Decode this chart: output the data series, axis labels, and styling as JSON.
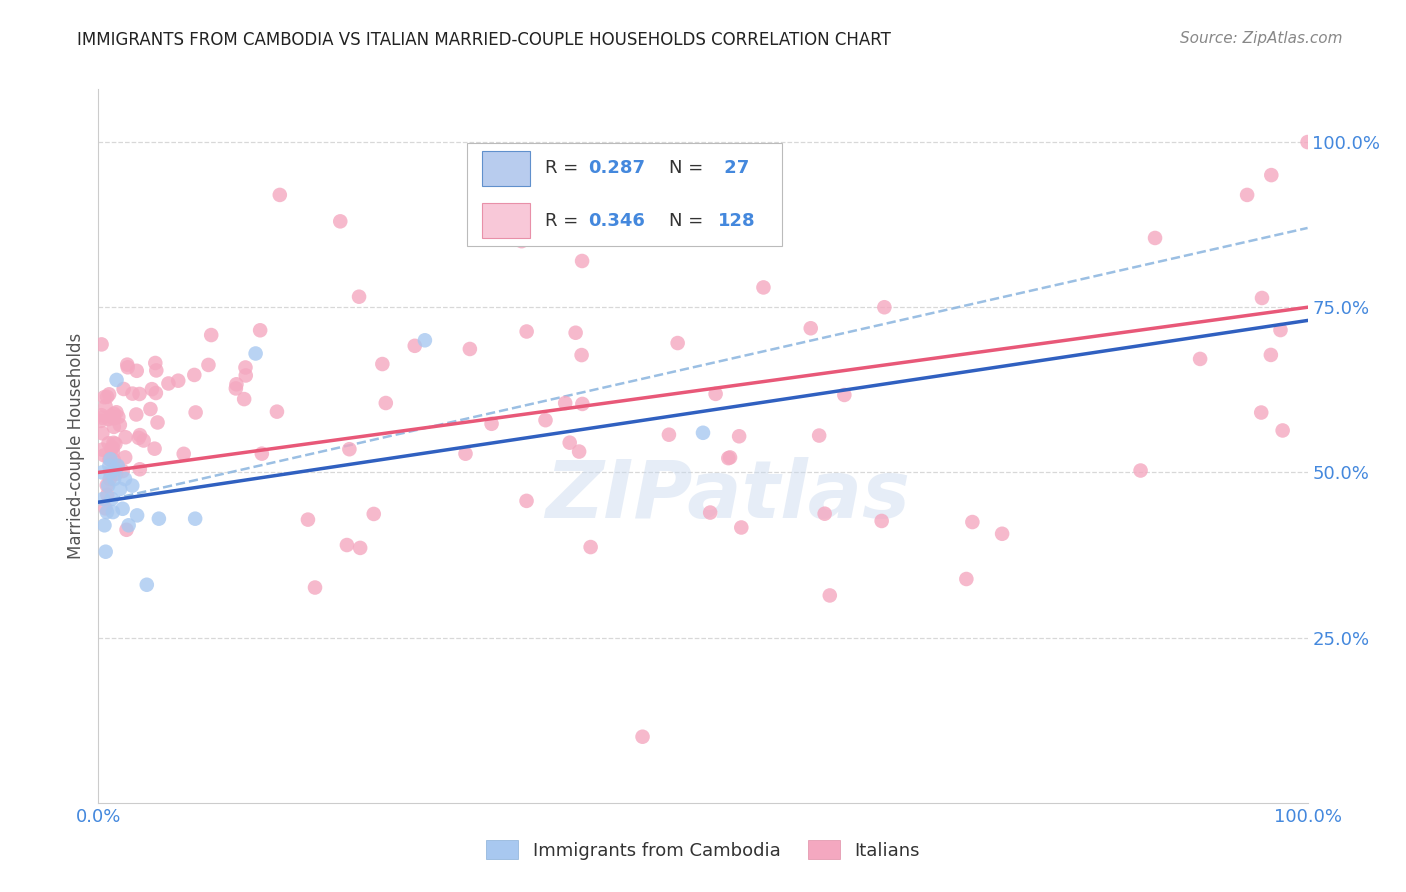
{
  "title": "IMMIGRANTS FROM CAMBODIA VS ITALIAN MARRIED-COUPLE HOUSEHOLDS CORRELATION CHART",
  "source": "Source: ZipAtlas.com",
  "ylabel": "Married-couple Households",
  "watermark": "ZIPatlas",
  "cambodia_color": "#a8c8f0",
  "italian_color": "#f4a8c0",
  "trendline_cambodia_color": "#3060c0",
  "trendline_italian_color": "#e85878",
  "trendline_dashed_color": "#90b8e0",
  "background_color": "#ffffff",
  "grid_color": "#d8d8d8",
  "legend_R1": "0.287",
  "legend_N1": "27",
  "legend_R2": "0.346",
  "legend_N2": "128",
  "legend_color1": "#a8c8f0",
  "legend_color2": "#f4a8c0",
  "tick_color": "#4488dd",
  "title_color": "#222222",
  "source_color": "#888888",
  "ylabel_color": "#555555",
  "bottom_label1": "Immigrants from Cambodia",
  "bottom_label2": "Italians"
}
